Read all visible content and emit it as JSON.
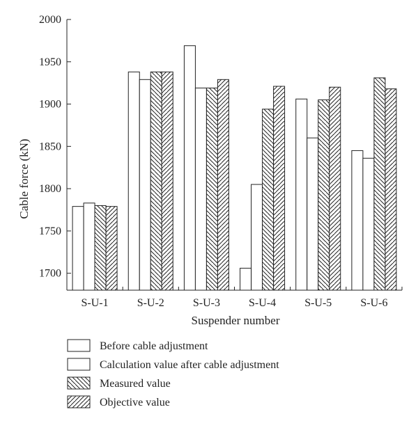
{
  "chart_data": {
    "type": "bar",
    "title": "",
    "xlabel": "Suspender number",
    "ylabel": "Cable force (kN)",
    "ylim": [
      1680,
      2000
    ],
    "yticks": [
      1700,
      1750,
      1800,
      1850,
      1900,
      1950,
      2000
    ],
    "grid": false,
    "legend_position": "bottom",
    "categories": [
      "S-U-1",
      "S-U-2",
      "S-U-3",
      "S-U-4",
      "S-U-5",
      "S-U-6"
    ],
    "series": [
      {
        "name": "Before cable adjustment",
        "pattern": "none",
        "values": [
          1779,
          1938,
          1969,
          1706,
          1906,
          1845
        ]
      },
      {
        "name": "Calculation value after cable adjustment",
        "pattern": "none",
        "values": [
          1783,
          1929,
          1919,
          1805,
          1860,
          1836
        ]
      },
      {
        "name": "Measured value",
        "pattern": "backslash",
        "values": [
          1780,
          1938,
          1919,
          1894,
          1905,
          1931
        ]
      },
      {
        "name": "Objective value",
        "pattern": "slash",
        "values": [
          1779,
          1938,
          1929,
          1921,
          1920,
          1918
        ]
      }
    ]
  }
}
